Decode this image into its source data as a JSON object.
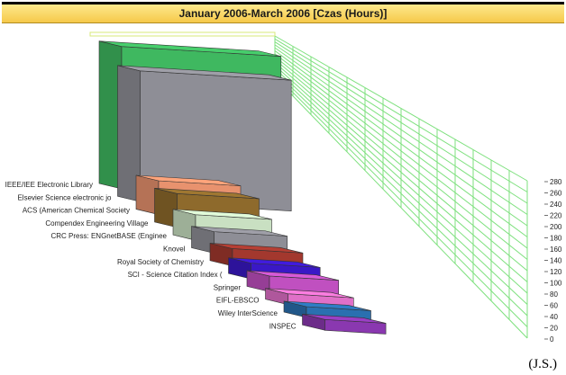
{
  "chart_data": {
    "type": "bar",
    "title": "January 2006-March 2006  [Czas (Hours)]",
    "categories": [
      "IEEE/IEE Electronic Library",
      "Elsevier Science electronic jo",
      "ACS (American Chemical Society",
      "Compendex Engineering Village",
      "CRC Press: ENGnetBASE (Enginee",
      "Knovel",
      "Royal Society of Chemistry",
      "SCI - Science Citation Index (",
      "Springer",
      "EIFL-EBSCO",
      "Wiley InterScience",
      "INSPEC"
    ],
    "values": [
      272,
      258,
      140,
      140,
      130,
      125,
      120,
      118,
      118,
      112,
      110,
      104
    ],
    "colors": [
      "#3fb860",
      "#8e8e96",
      "#e8926e",
      "#8e6a2c",
      "#c9e0c2",
      "#8e8e96",
      "#a3382e",
      "#3a18c6",
      "#c050c0",
      "#e070c8",
      "#2a70b0",
      "#8a38b0"
    ],
    "ylim": [
      0,
      280
    ],
    "yticks": [
      0,
      20,
      40,
      60,
      80,
      100,
      120,
      140,
      160,
      180,
      200,
      220,
      240,
      260,
      280
    ],
    "grid": true,
    "view": "3d-perspective"
  },
  "credit": "(J.S.)"
}
